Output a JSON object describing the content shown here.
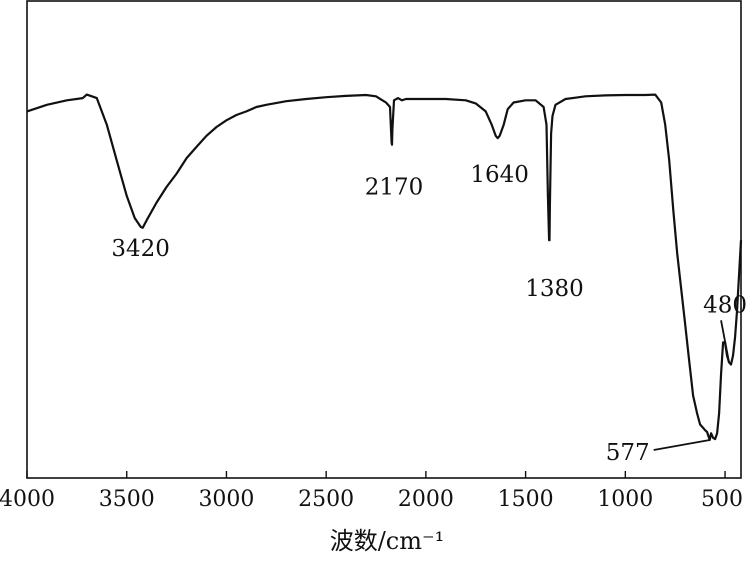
{
  "chart_data": {
    "type": "line",
    "title": "",
    "xlabel": "波数/cm⁻¹",
    "ylabel": "",
    "xlim": [
      4000,
      420
    ],
    "x_reversed": true,
    "ylim": [
      0,
      100
    ],
    "grid": false,
    "legend": "none",
    "x_ticks": [
      4000,
      3500,
      3000,
      2500,
      2000,
      1500,
      1000,
      500
    ],
    "x_tick_labels": [
      "4000",
      "3500",
      "3000",
      "2500",
      "2000",
      "1500",
      "1000",
      "500"
    ],
    "y_ticks_shown": false,
    "series": [
      {
        "points": [
          [
            4000,
            79
          ],
          [
            3900,
            80.5
          ],
          [
            3800,
            81.5
          ],
          [
            3720,
            82
          ],
          [
            3700,
            82.8
          ],
          [
            3650,
            82
          ],
          [
            3600,
            76
          ],
          [
            3550,
            68
          ],
          [
            3500,
            60
          ],
          [
            3460,
            55
          ],
          [
            3430,
            53
          ],
          [
            3420,
            52.8
          ],
          [
            3400,
            54.5
          ],
          [
            3350,
            58.5
          ],
          [
            3300,
            62
          ],
          [
            3250,
            65
          ],
          [
            3200,
            68.5
          ],
          [
            3150,
            71
          ],
          [
            3100,
            73.5
          ],
          [
            3050,
            75.5
          ],
          [
            3000,
            77
          ],
          [
            2950,
            78.2
          ],
          [
            2900,
            79
          ],
          [
            2850,
            80
          ],
          [
            2800,
            80.5
          ],
          [
            2700,
            81.3
          ],
          [
            2600,
            81.8
          ],
          [
            2500,
            82.2
          ],
          [
            2400,
            82.5
          ],
          [
            2300,
            82.7
          ],
          [
            2250,
            82.4
          ],
          [
            2200,
            81
          ],
          [
            2180,
            80
          ],
          [
            2172,
            72
          ],
          [
            2170,
            71.5
          ],
          [
            2168,
            75
          ],
          [
            2160,
            81.5
          ],
          [
            2140,
            82
          ],
          [
            2120,
            81.5
          ],
          [
            2100,
            81.8
          ],
          [
            2000,
            81.8
          ],
          [
            1900,
            81.8
          ],
          [
            1800,
            81.5
          ],
          [
            1750,
            80.8
          ],
          [
            1700,
            79
          ],
          [
            1670,
            76
          ],
          [
            1650,
            73.5
          ],
          [
            1640,
            73
          ],
          [
            1630,
            73.5
          ],
          [
            1610,
            76
          ],
          [
            1590,
            79.5
          ],
          [
            1560,
            81
          ],
          [
            1500,
            81.5
          ],
          [
            1450,
            81.5
          ],
          [
            1410,
            80
          ],
          [
            1395,
            76
          ],
          [
            1388,
            60
          ],
          [
            1382,
            50
          ],
          [
            1380,
            50
          ],
          [
            1378,
            58
          ],
          [
            1372,
            74
          ],
          [
            1365,
            78
          ],
          [
            1350,
            80.5
          ],
          [
            1300,
            81.8
          ],
          [
            1250,
            82.1
          ],
          [
            1200,
            82.4
          ],
          [
            1100,
            82.6
          ],
          [
            1000,
            82.7
          ],
          [
            900,
            82.7
          ],
          [
            850,
            82.8
          ],
          [
            820,
            81
          ],
          [
            800,
            76
          ],
          [
            780,
            68
          ],
          [
            760,
            57
          ],
          [
            740,
            47
          ],
          [
            720,
            39
          ],
          [
            700,
            31
          ],
          [
            680,
            23
          ],
          [
            660,
            15
          ],
          [
            640,
            11
          ],
          [
            625,
            8.5
          ],
          [
            615,
            8
          ],
          [
            600,
            7.2
          ],
          [
            590,
            6.8
          ],
          [
            577,
            5
          ],
          [
            570,
            6.5
          ],
          [
            560,
            5.5
          ],
          [
            550,
            5.2
          ],
          [
            540,
            6.5
          ],
          [
            530,
            11
          ],
          [
            520,
            20
          ],
          [
            510,
            27
          ],
          [
            500,
            27
          ],
          [
            490,
            24
          ],
          [
            480,
            22.5
          ],
          [
            470,
            22
          ],
          [
            460,
            24
          ],
          [
            450,
            28
          ],
          [
            440,
            34
          ],
          [
            430,
            42
          ],
          [
            420,
            50
          ]
        ]
      }
    ],
    "annotations": [
      {
        "text": "3420",
        "x": 3420,
        "y": 52.8
      },
      {
        "text": "2170",
        "x": 2170,
        "y": 71.5
      },
      {
        "text": "1640",
        "x": 1640,
        "y": 73
      },
      {
        "text": "1380",
        "x": 1380,
        "y": 50
      },
      {
        "text": "480",
        "x": 480,
        "y": 22.5
      },
      {
        "text": "577",
        "x": 577,
        "y": 5
      }
    ]
  }
}
